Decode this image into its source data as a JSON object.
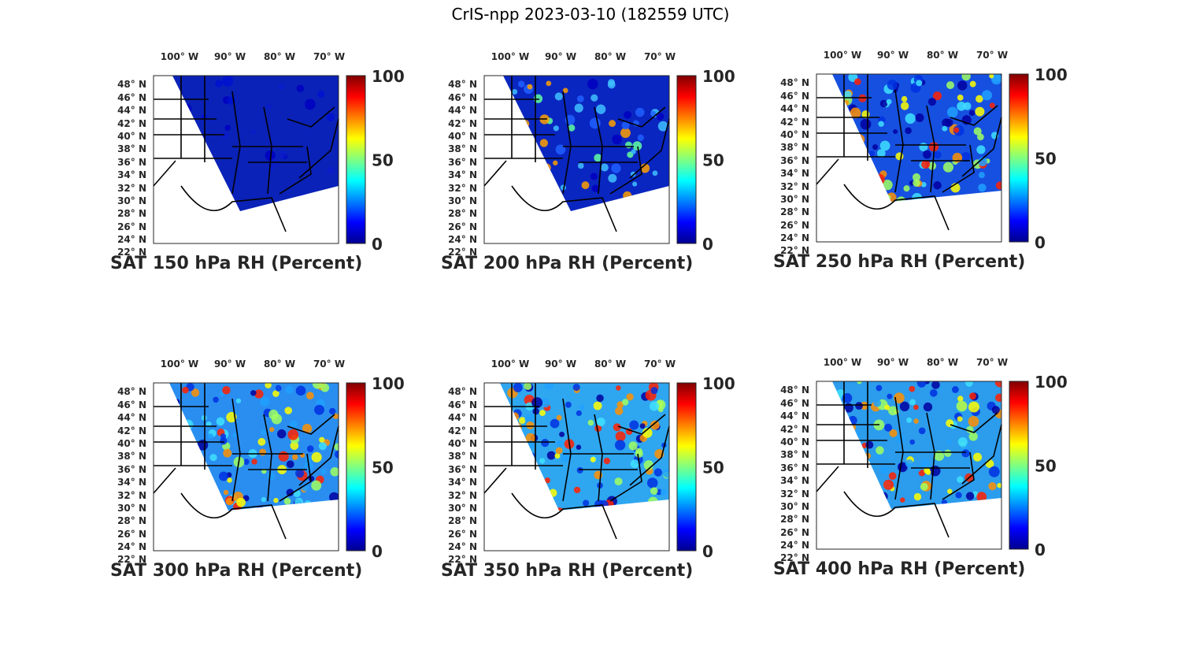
{
  "figure": {
    "title": "CrIS-npp 2023-03-10 (182559 UTC)"
  },
  "colormap": [
    "#00008f",
    "#0000ff",
    "#0080ff",
    "#00ffff",
    "#80ff80",
    "#ffff00",
    "#ff8000",
    "#ff0000",
    "#800000"
  ],
  "shared_axes": {
    "lon_ticks": [
      "100° W",
      "90° W",
      "80° W",
      "70° W"
    ],
    "lat_ticks": [
      "48° N",
      "46° N",
      "44° N",
      "42° N",
      "40° N",
      "38° N",
      "36° N",
      "34° N",
      "32° N",
      "30° N",
      "28° N",
      "26° N",
      "24° N",
      "22° N"
    ],
    "colorbar_ticks": [
      "100",
      "50",
      "0"
    ]
  },
  "panels": [
    {
      "label": "SAT 150 hPa RH (Percent)",
      "dominant_color": "#0a22b8"
    },
    {
      "label": "SAT 200 hPa RH (Percent)",
      "dominant_color": "#0a26c0"
    },
    {
      "label": "SAT 250 hPa RH (Percent)",
      "dominant_color": "#1650e0"
    },
    {
      "label": "SAT 300 hPa RH (Percent)",
      "dominant_color": "#2a8ef0"
    },
    {
      "label": "SAT 350 hPa RH (Percent)",
      "dominant_color": "#2fa6f0"
    },
    {
      "label": "SAT 400 hPa RH (Percent)",
      "dominant_color": "#2c9cec"
    }
  ],
  "chart_data": [
    {
      "type": "heatmap",
      "title": "SAT 150 hPa RH (Percent)",
      "colorbar_range": [
        0,
        100
      ],
      "lon_range": [
        -105,
        -67
      ],
      "lat_range": [
        22,
        50
      ]
    },
    {
      "type": "heatmap",
      "title": "SAT 200 hPa RH (Percent)",
      "colorbar_range": [
        0,
        100
      ],
      "lon_range": [
        -105,
        -67
      ],
      "lat_range": [
        22,
        50
      ]
    },
    {
      "type": "heatmap",
      "title": "SAT 250 hPa RH (Percent)",
      "colorbar_range": [
        0,
        100
      ],
      "lon_range": [
        -105,
        -67
      ],
      "lat_range": [
        22,
        50
      ]
    },
    {
      "type": "heatmap",
      "title": "SAT 300 hPa RH (Percent)",
      "colorbar_range": [
        0,
        100
      ],
      "lon_range": [
        -105,
        -67
      ],
      "lat_range": [
        22,
        50
      ]
    },
    {
      "type": "heatmap",
      "title": "SAT 350 hPa RH (Percent)",
      "colorbar_range": [
        0,
        100
      ],
      "lon_range": [
        -105,
        -67
      ],
      "lat_range": [
        22,
        50
      ]
    },
    {
      "type": "heatmap",
      "title": "SAT 400 hPa RH (Percent)",
      "colorbar_range": [
        0,
        100
      ],
      "lon_range": [
        -105,
        -67
      ],
      "lat_range": [
        22,
        50
      ]
    }
  ]
}
